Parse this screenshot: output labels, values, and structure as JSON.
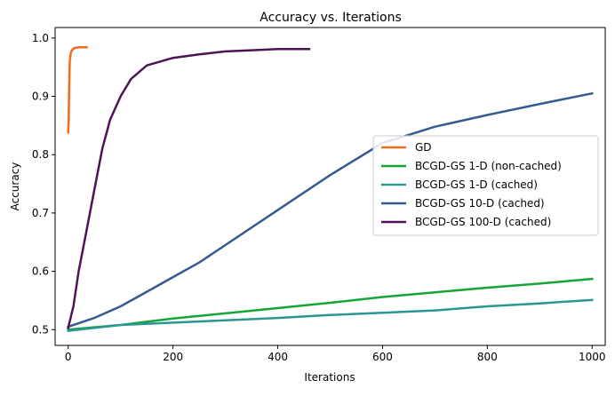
{
  "chart_data": {
    "type": "line",
    "title": "Accuracy vs. Iterations",
    "xlabel": "Iterations",
    "ylabel": "Accuracy",
    "xlim": [
      -25,
      1025
    ],
    "ylim": [
      0.473,
      1.018
    ],
    "xticks": [
      0,
      200,
      400,
      600,
      800,
      1000
    ],
    "yticks": [
      0.5,
      0.6,
      0.7,
      0.8,
      0.9,
      1.0
    ],
    "xtick_labels": [
      "0",
      "200",
      "400",
      "600",
      "800",
      "1000"
    ],
    "ytick_labels": [
      "0.5",
      "0.6",
      "0.7",
      "0.8",
      "0.9",
      "1.0"
    ],
    "grid": false,
    "legend_position": "center-right",
    "series": [
      {
        "name": "GD",
        "color": "#f26a1b",
        "points": [
          [
            0,
            0.838
          ],
          [
            1,
            0.86
          ],
          [
            2,
            0.92
          ],
          [
            3,
            0.96
          ],
          [
            5,
            0.975
          ],
          [
            8,
            0.98
          ],
          [
            12,
            0.983
          ],
          [
            20,
            0.984
          ],
          [
            35,
            0.984
          ]
        ]
      },
      {
        "name": "BCGD-GS 1-D (non-cached)",
        "color": "#15a63a",
        "points": [
          [
            0,
            0.5
          ],
          [
            100,
            0.508
          ],
          [
            200,
            0.519
          ],
          [
            300,
            0.528
          ],
          [
            400,
            0.537
          ],
          [
            500,
            0.546
          ],
          [
            600,
            0.556
          ],
          [
            700,
            0.564
          ],
          [
            800,
            0.572
          ],
          [
            900,
            0.579
          ],
          [
            1000,
            0.587
          ]
        ]
      },
      {
        "name": "BCGD-GS 1-D (cached)",
        "color": "#2a9796",
        "points": [
          [
            0,
            0.498
          ],
          [
            100,
            0.508
          ],
          [
            200,
            0.512
          ],
          [
            300,
            0.516
          ],
          [
            400,
            0.52
          ],
          [
            500,
            0.525
          ],
          [
            600,
            0.529
          ],
          [
            700,
            0.533
          ],
          [
            800,
            0.54
          ],
          [
            900,
            0.545
          ],
          [
            1000,
            0.551
          ]
        ]
      },
      {
        "name": "BCGD-GS 10-D (cached)",
        "color": "#355b8f",
        "points": [
          [
            0,
            0.505
          ],
          [
            50,
            0.52
          ],
          [
            100,
            0.54
          ],
          [
            150,
            0.565
          ],
          [
            200,
            0.59
          ],
          [
            250,
            0.615
          ],
          [
            300,
            0.645
          ],
          [
            400,
            0.705
          ],
          [
            500,
            0.765
          ],
          [
            600,
            0.82
          ],
          [
            700,
            0.848
          ],
          [
            800,
            0.868
          ],
          [
            900,
            0.887
          ],
          [
            1000,
            0.905
          ]
        ]
      },
      {
        "name": "BCGD-GS 100-D (cached)",
        "color": "#4e1456",
        "points": [
          [
            0,
            0.503
          ],
          [
            10,
            0.54
          ],
          [
            20,
            0.6
          ],
          [
            35,
            0.67
          ],
          [
            50,
            0.74
          ],
          [
            65,
            0.81
          ],
          [
            80,
            0.86
          ],
          [
            100,
            0.9
          ],
          [
            120,
            0.93
          ],
          [
            150,
            0.953
          ],
          [
            200,
            0.966
          ],
          [
            250,
            0.972
          ],
          [
            300,
            0.977
          ],
          [
            350,
            0.979
          ],
          [
            400,
            0.981
          ],
          [
            460,
            0.981
          ]
        ]
      }
    ]
  }
}
